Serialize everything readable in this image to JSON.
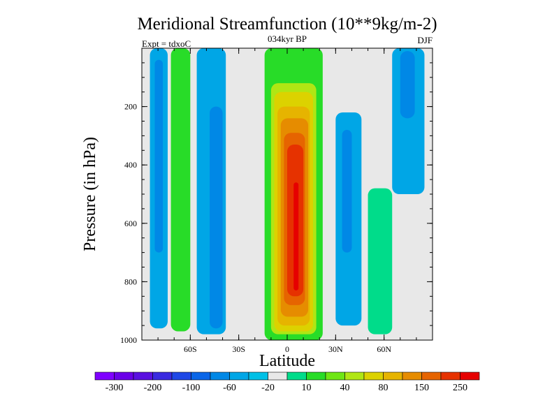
{
  "chart_data": {
    "type": "heatmap",
    "title": "Meridional Streamfunction (10**9kg/m-2)",
    "subtitle_center": "034kyr BP",
    "subtitle_left": "Expt = tdxoC",
    "subtitle_right": "DJF",
    "xlabel": "Latitude",
    "ylabel": "Pressure (in hPa)",
    "x_ticks": [
      {
        "value": -60,
        "label": "60S"
      },
      {
        "value": -30,
        "label": "30S"
      },
      {
        "value": 0,
        "label": "0"
      },
      {
        "value": 30,
        "label": "30N"
      },
      {
        "value": 60,
        "label": "60N"
      }
    ],
    "y_ticks": [
      {
        "value": 200,
        "label": "200"
      },
      {
        "value": 400,
        "label": "400"
      },
      {
        "value": 600,
        "label": "600"
      },
      {
        "value": 800,
        "label": "800"
      },
      {
        "value": 1000,
        "label": "1000"
      }
    ],
    "xlim": [
      -90,
      90
    ],
    "ylim": [
      1000,
      0
    ],
    "colorbar": {
      "bins": [
        "#7f00ff",
        "#6a00e8",
        "#5a10e0",
        "#3a2ae0",
        "#1f48e6",
        "#0a66e8",
        "#0088e6",
        "#00a6e6",
        "#00c0e6",
        "#e8e8e8",
        "#00dc8a",
        "#28dc28",
        "#6ee614",
        "#b0e614",
        "#dcd200",
        "#e6b400",
        "#e68c00",
        "#e66400",
        "#e63200",
        "#e60000"
      ],
      "labels": [
        {
          "bin_edge": 1,
          "text": "-300"
        },
        {
          "bin_edge": 3,
          "text": "-200"
        },
        {
          "bin_edge": 5,
          "text": "-100"
        },
        {
          "bin_edge": 7,
          "text": "-60"
        },
        {
          "bin_edge": 9,
          "text": "-20"
        },
        {
          "bin_edge": 11,
          "text": "10"
        },
        {
          "bin_edge": 13,
          "text": "40"
        },
        {
          "bin_edge": 15,
          "text": "80"
        },
        {
          "bin_edge": 17,
          "text": "150"
        },
        {
          "bin_edge": 19,
          "text": "250"
        }
      ]
    },
    "background_color": "#e8e8e8",
    "cells": [
      {
        "name": "band-1",
        "lat_range": [
          -85,
          -74
        ],
        "p_range": [
          0,
          960
        ],
        "color": "#00a6e6"
      },
      {
        "name": "band-1-core",
        "lat_range": [
          -82,
          -77
        ],
        "p_range": [
          40,
          700
        ],
        "color": "#0088e6"
      },
      {
        "name": "band-2",
        "lat_range": [
          -72,
          -60
        ],
        "p_range": [
          0,
          970
        ],
        "color": "#28dc28"
      },
      {
        "name": "band-3",
        "lat_range": [
          -56,
          -38
        ],
        "p_range": [
          0,
          980
        ],
        "color": "#00a6e6"
      },
      {
        "name": "band-3-core",
        "lat_range": [
          -48,
          -40
        ],
        "p_range": [
          200,
          960
        ],
        "color": "#0088e6"
      },
      {
        "name": "band-4",
        "lat_range": [
          -14,
          22
        ],
        "p_range": [
          0,
          1000
        ],
        "color": "#28dc28"
      },
      {
        "name": "band-4-l1",
        "lat_range": [
          -10,
          18
        ],
        "p_range": [
          120,
          980
        ],
        "color": "#b0e614"
      },
      {
        "name": "band-4-l2",
        "lat_range": [
          -8,
          16
        ],
        "p_range": [
          150,
          970
        ],
        "color": "#dcd200"
      },
      {
        "name": "band-4-l3",
        "lat_range": [
          -6,
          14
        ],
        "p_range": [
          200,
          950
        ],
        "color": "#e6b400"
      },
      {
        "name": "band-4-l4",
        "lat_range": [
          -4,
          13
        ],
        "p_range": [
          240,
          920
        ],
        "color": "#e68c00"
      },
      {
        "name": "band-4-l5",
        "lat_range": [
          -2,
          11
        ],
        "p_range": [
          290,
          880
        ],
        "color": "#e66400"
      },
      {
        "name": "band-4-l6",
        "lat_range": [
          0,
          10
        ],
        "p_range": [
          330,
          850
        ],
        "color": "#e63200"
      },
      {
        "name": "band-4-l7",
        "lat_range": [
          4,
          7
        ],
        "p_range": [
          460,
          830
        ],
        "color": "#e60000"
      },
      {
        "name": "band-5",
        "lat_range": [
          30,
          46
        ],
        "p_range": [
          220,
          950
        ],
        "color": "#00a6e6"
      },
      {
        "name": "band-5-core",
        "lat_range": [
          34,
          40
        ],
        "p_range": [
          280,
          700
        ],
        "color": "#0088e6"
      },
      {
        "name": "band-6",
        "lat_range": [
          50,
          65
        ],
        "p_range": [
          480,
          980
        ],
        "color": "#00dc8a"
      },
      {
        "name": "band-7",
        "lat_range": [
          65,
          85
        ],
        "p_range": [
          0,
          500
        ],
        "color": "#00a6e6"
      },
      {
        "name": "band-7-core",
        "lat_range": [
          70,
          79
        ],
        "p_range": [
          10,
          240
        ],
        "color": "#0088e6"
      }
    ]
  }
}
